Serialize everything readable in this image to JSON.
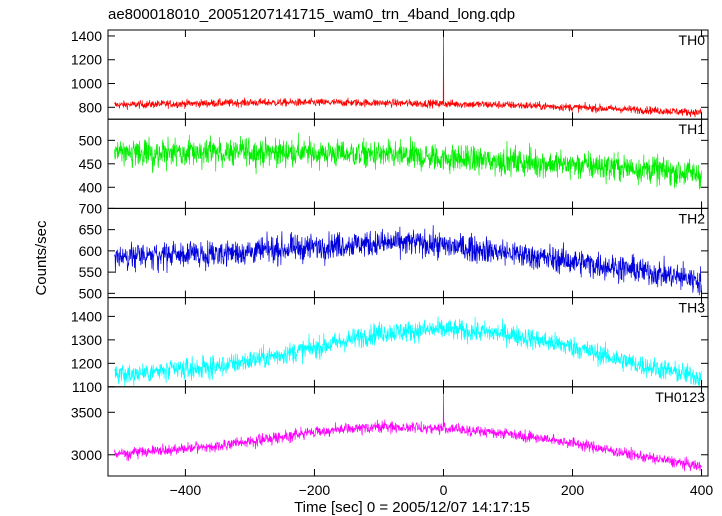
{
  "chart_data": {
    "type": "line",
    "title": "ae800018010_20051207141715_wam0_trn_4band_long.qdp",
    "xlabel": "Time [sec] 0 = 2005/12/07 14:17:15",
    "ylabel": "Counts/sec",
    "xlim": [
      -520,
      410
    ],
    "xticks": [
      -400,
      -200,
      0,
      200,
      400
    ],
    "xtick_labels": [
      "−400",
      "−200",
      "0",
      "200",
      "400"
    ],
    "grid": false,
    "panels": [
      {
        "label": "TH0",
        "color": "#ff0000",
        "ylim": [
          700,
          1450
        ],
        "yticks": [
          800,
          1000,
          1200,
          1400
        ],
        "trend": {
          "x": [
            -510,
            -300,
            -150,
            0,
            100,
            200,
            300,
            400
          ],
          "y": [
            820,
            840,
            840,
            830,
            820,
            800,
            780,
            755
          ]
        },
        "noise": 28,
        "spikes": [
          {
            "x": 0,
            "y": 1420
          }
        ]
      },
      {
        "label": "TH1",
        "color": "#00ee00",
        "ylim": [
          355,
          545
        ],
        "yticks": [
          400,
          450,
          500
        ],
        "trend": {
          "x": [
            -510,
            -300,
            -150,
            0,
            100,
            200,
            300,
            400
          ],
          "y": [
            470,
            475,
            472,
            462,
            455,
            448,
            440,
            428
          ]
        },
        "noise": 25,
        "spikes": []
      },
      {
        "label": "TH2",
        "color": "#0000dd",
        "ylim": [
          490,
          700
        ],
        "yticks": [
          500,
          550,
          600,
          650,
          700
        ],
        "trend": {
          "x": [
            -510,
            -300,
            -150,
            -50,
            50,
            200,
            300,
            400
          ],
          "y": [
            585,
            598,
            615,
            620,
            605,
            575,
            555,
            530
          ]
        },
        "noise": 26,
        "spikes": []
      },
      {
        "label": "TH3",
        "color": "#00ffff",
        "ylim": [
          1100,
          1480
        ],
        "yticks": [
          1100,
          1200,
          1300,
          1400
        ],
        "trend": {
          "x": [
            -510,
            -350,
            -200,
            -100,
            0,
            100,
            200,
            300,
            400
          ],
          "y": [
            1150,
            1185,
            1265,
            1330,
            1345,
            1325,
            1270,
            1195,
            1140
          ]
        },
        "noise": 38,
        "spikes": []
      },
      {
        "label": "TH0123",
        "color": "#ff00ff",
        "ylim": [
          2750,
          3800
        ],
        "yticks": [
          3000,
          3500
        ],
        "trend": {
          "x": [
            -510,
            -350,
            -200,
            -100,
            0,
            100,
            200,
            300,
            400
          ],
          "y": [
            3010,
            3100,
            3270,
            3330,
            3310,
            3250,
            3140,
            2990,
            2860
          ]
        },
        "noise": 55,
        "spikes": [
          {
            "x": 0,
            "y": 3750
          }
        ]
      }
    ]
  }
}
